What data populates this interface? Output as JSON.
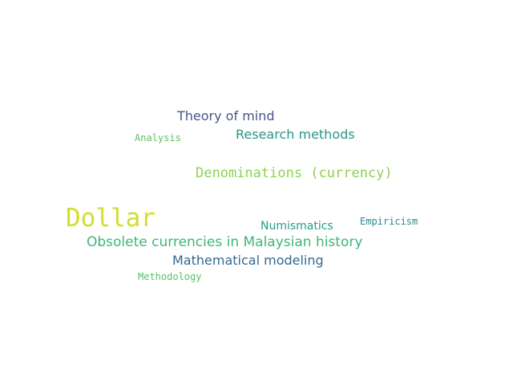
{
  "word_cloud": {
    "words": [
      {
        "id": "theory",
        "text": "Theory of mind",
        "color": "#4a5488"
      },
      {
        "id": "research",
        "text": "Research methods",
        "color": "#2a958a"
      },
      {
        "id": "analysis",
        "text": "Analysis",
        "color": "#5ec164"
      },
      {
        "id": "denominations",
        "text": "Denominations (currency)",
        "color": "#8fd04e"
      },
      {
        "id": "dollar",
        "text": "Dollar",
        "color": "#d2de2a"
      },
      {
        "id": "numismatics",
        "text": "Numismatics",
        "color": "#259e8a"
      },
      {
        "id": "empiricism",
        "text": "Empiricism",
        "color": "#2a8b8e"
      },
      {
        "id": "obsolete",
        "text": "Obsolete currencies in Malaysian history",
        "color": "#3cb67a"
      },
      {
        "id": "mathematical",
        "text": "Mathematical modeling",
        "color": "#33688e"
      },
      {
        "id": "methodology",
        "text": "Methodology",
        "color": "#58c16a"
      }
    ]
  }
}
